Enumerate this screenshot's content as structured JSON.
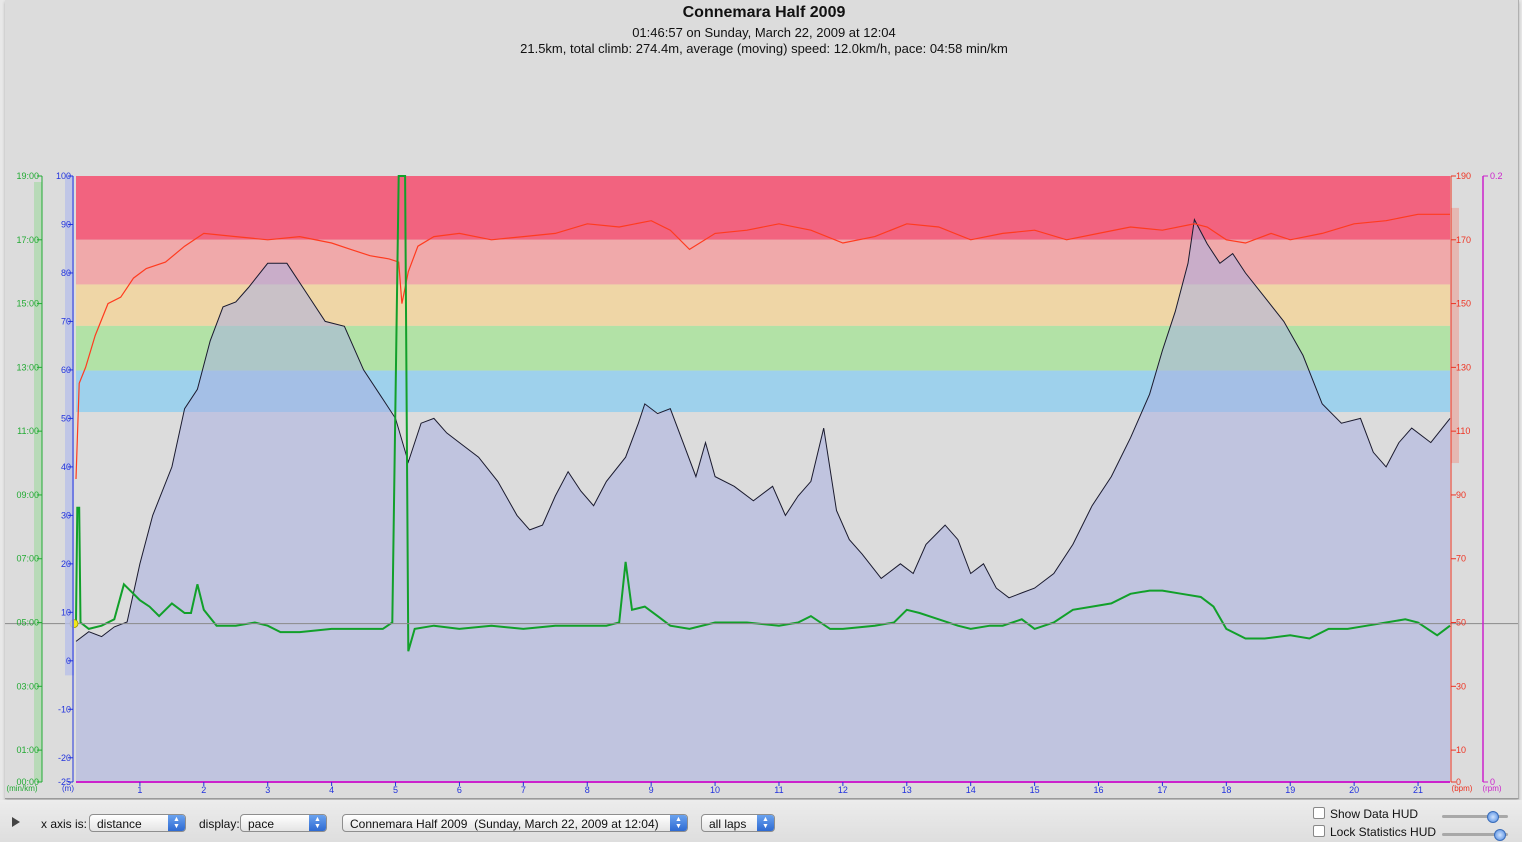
{
  "chart_data": {
    "type": "line",
    "title": "Connemara Half 2009",
    "subtitle": "01:46:57 on Sunday, March 22, 2009 at 12:04",
    "summary": "21.5km, total climb: 274.4m, average (moving) speed: 12.0km/h, pace: 04:58 min/km",
    "xlim": [
      0,
      21.5
    ],
    "x_ticks": [
      1,
      2,
      3,
      4,
      5,
      6,
      7,
      8,
      9,
      10,
      11,
      12,
      13,
      14,
      15,
      16,
      17,
      18,
      19,
      20,
      21
    ],
    "axes": {
      "pace": {
        "unit": "(min/km)",
        "color": "#22aa33",
        "ticks": [
          "19:00",
          "17:00",
          "15:00",
          "13:00",
          "11:00",
          "09:00",
          "07:00",
          "05:00",
          "03:00",
          "01:00",
          "00:00"
        ],
        "range_minutes": [
          0,
          19
        ]
      },
      "altitude": {
        "unit": "(m)",
        "color": "#2233dd",
        "ticks": [
          100,
          90,
          80,
          70,
          60,
          50,
          40,
          30,
          20,
          10,
          0,
          -10,
          -20,
          -25
        ],
        "range": [
          -25,
          100
        ]
      },
      "heart_rate": {
        "unit": "(bpm)",
        "color": "#ee3322",
        "ticks": [
          190,
          170,
          150,
          130,
          110,
          90,
          70,
          50,
          30,
          10,
          0
        ],
        "range": [
          0,
          190
        ]
      },
      "cadence": {
        "unit": "(rpm)",
        "color": "#cc22cc",
        "ticks": [
          "0.2",
          "0"
        ],
        "range": [
          0,
          0.2
        ]
      }
    },
    "hr_zones": [
      {
        "from": 170,
        "to": 190,
        "color": "#f2637f"
      },
      {
        "from": 156,
        "to": 170,
        "color": "#f0a9aa"
      },
      {
        "from": 143,
        "to": 156,
        "color": "#efd6a6"
      },
      {
        "from": 129,
        "to": 143,
        "color": "#b2e2a6"
      },
      {
        "from": 116,
        "to": 129,
        "color": "#9ed1ec"
      }
    ],
    "reference_pace": "04:58",
    "series": [
      {
        "key": "altitude",
        "axis": "altitude",
        "color": "#1a1a2e",
        "fill": "#aab0e2",
        "points": [
          [
            0,
            4
          ],
          [
            0.2,
            6
          ],
          [
            0.4,
            5
          ],
          [
            0.6,
            7
          ],
          [
            0.8,
            8
          ],
          [
            1.0,
            20
          ],
          [
            1.2,
            30
          ],
          [
            1.5,
            40
          ],
          [
            1.7,
            52
          ],
          [
            1.9,
            56
          ],
          [
            2.1,
            66
          ],
          [
            2.3,
            73
          ],
          [
            2.5,
            74
          ],
          [
            2.7,
            77
          ],
          [
            3.0,
            82
          ],
          [
            3.3,
            82
          ],
          [
            3.6,
            76
          ],
          [
            3.9,
            70
          ],
          [
            4.2,
            69
          ],
          [
            4.5,
            60
          ],
          [
            4.8,
            54
          ],
          [
            5.0,
            50
          ],
          [
            5.2,
            41
          ],
          [
            5.4,
            49
          ],
          [
            5.6,
            50
          ],
          [
            5.8,
            47
          ],
          [
            6.0,
            45
          ],
          [
            6.3,
            42
          ],
          [
            6.6,
            37
          ],
          [
            6.9,
            30
          ],
          [
            7.1,
            27
          ],
          [
            7.3,
            28
          ],
          [
            7.5,
            34
          ],
          [
            7.7,
            39
          ],
          [
            7.9,
            35
          ],
          [
            8.1,
            32
          ],
          [
            8.3,
            37
          ],
          [
            8.6,
            42
          ],
          [
            8.8,
            49
          ],
          [
            8.9,
            53
          ],
          [
            9.1,
            51
          ],
          [
            9.3,
            52
          ],
          [
            9.5,
            45
          ],
          [
            9.7,
            38
          ],
          [
            9.85,
            45
          ],
          [
            10.0,
            38
          ],
          [
            10.3,
            36
          ],
          [
            10.6,
            33
          ],
          [
            10.9,
            36
          ],
          [
            11.1,
            30
          ],
          [
            11.3,
            34
          ],
          [
            11.5,
            37
          ],
          [
            11.7,
            48
          ],
          [
            11.9,
            31
          ],
          [
            12.1,
            25
          ],
          [
            12.3,
            22
          ],
          [
            12.6,
            17
          ],
          [
            12.9,
            20
          ],
          [
            13.1,
            18
          ],
          [
            13.3,
            24
          ],
          [
            13.6,
            28
          ],
          [
            13.8,
            25
          ],
          [
            14.0,
            18
          ],
          [
            14.2,
            20
          ],
          [
            14.4,
            15
          ],
          [
            14.6,
            13
          ],
          [
            14.8,
            14
          ],
          [
            15.0,
            15
          ],
          [
            15.3,
            18
          ],
          [
            15.6,
            24
          ],
          [
            15.9,
            32
          ],
          [
            16.2,
            38
          ],
          [
            16.5,
            46
          ],
          [
            16.8,
            55
          ],
          [
            17.0,
            64
          ],
          [
            17.2,
            72
          ],
          [
            17.4,
            82
          ],
          [
            17.5,
            91
          ],
          [
            17.7,
            86
          ],
          [
            17.9,
            82
          ],
          [
            18.1,
            84
          ],
          [
            18.3,
            80
          ],
          [
            18.6,
            75
          ],
          [
            18.9,
            70
          ],
          [
            19.2,
            63
          ],
          [
            19.5,
            53
          ],
          [
            19.8,
            49
          ],
          [
            20.1,
            50
          ],
          [
            20.3,
            43
          ],
          [
            20.5,
            40
          ],
          [
            20.7,
            45
          ],
          [
            20.9,
            48
          ],
          [
            21.2,
            45
          ],
          [
            21.5,
            50
          ]
        ]
      },
      {
        "key": "heart_rate",
        "axis": "heart_rate",
        "color": "#ff3b1f",
        "points": [
          [
            0,
            95
          ],
          [
            0.05,
            125
          ],
          [
            0.15,
            130
          ],
          [
            0.3,
            140
          ],
          [
            0.5,
            150
          ],
          [
            0.7,
            152
          ],
          [
            0.9,
            158
          ],
          [
            1.1,
            161
          ],
          [
            1.4,
            163
          ],
          [
            1.7,
            168
          ],
          [
            2.0,
            172
          ],
          [
            2.5,
            171
          ],
          [
            3.0,
            170
          ],
          [
            3.5,
            171
          ],
          [
            4.0,
            169
          ],
          [
            4.3,
            167
          ],
          [
            4.6,
            165
          ],
          [
            4.9,
            164
          ],
          [
            5.05,
            163
          ],
          [
            5.1,
            150
          ],
          [
            5.2,
            160
          ],
          [
            5.35,
            168
          ],
          [
            5.6,
            171
          ],
          [
            6.0,
            172
          ],
          [
            6.5,
            170
          ],
          [
            7.0,
            171
          ],
          [
            7.5,
            172
          ],
          [
            8.0,
            175
          ],
          [
            8.5,
            174
          ],
          [
            9.0,
            176
          ],
          [
            9.3,
            173
          ],
          [
            9.6,
            167
          ],
          [
            10.0,
            172
          ],
          [
            10.5,
            173
          ],
          [
            11.0,
            175
          ],
          [
            11.5,
            173
          ],
          [
            12.0,
            169
          ],
          [
            12.5,
            171
          ],
          [
            13.0,
            175
          ],
          [
            13.5,
            174
          ],
          [
            14.0,
            170
          ],
          [
            14.5,
            172
          ],
          [
            15.0,
            173
          ],
          [
            15.5,
            170
          ],
          [
            16.0,
            172
          ],
          [
            16.5,
            174
          ],
          [
            17.0,
            173
          ],
          [
            17.5,
            175
          ],
          [
            17.7,
            174
          ],
          [
            18.0,
            170
          ],
          [
            18.3,
            169
          ],
          [
            18.7,
            172
          ],
          [
            19.0,
            170
          ],
          [
            19.5,
            172
          ],
          [
            20.0,
            175
          ],
          [
            20.5,
            176
          ],
          [
            21.0,
            178
          ],
          [
            21.5,
            178
          ]
        ]
      },
      {
        "key": "pace",
        "axis": "pace",
        "color": "#11a02a",
        "points": [
          [
            0,
            5.0
          ],
          [
            0.02,
            8.6
          ],
          [
            0.05,
            8.6
          ],
          [
            0.07,
            5.0
          ],
          [
            0.2,
            4.8
          ],
          [
            0.4,
            4.9
          ],
          [
            0.6,
            5.1
          ],
          [
            0.75,
            6.2
          ],
          [
            0.9,
            5.9
          ],
          [
            1.0,
            5.7
          ],
          [
            1.15,
            5.5
          ],
          [
            1.3,
            5.2
          ],
          [
            1.5,
            5.6
          ],
          [
            1.7,
            5.3
          ],
          [
            1.8,
            5.3
          ],
          [
            1.9,
            6.2
          ],
          [
            2.0,
            5.4
          ],
          [
            2.2,
            4.9
          ],
          [
            2.5,
            4.9
          ],
          [
            2.8,
            5.0
          ],
          [
            3.0,
            4.9
          ],
          [
            3.2,
            4.7
          ],
          [
            3.5,
            4.7
          ],
          [
            4.0,
            4.8
          ],
          [
            4.5,
            4.8
          ],
          [
            4.8,
            4.8
          ],
          [
            4.95,
            5.0
          ],
          [
            5.05,
            19.0
          ],
          [
            5.15,
            19.0
          ],
          [
            5.2,
            4.1
          ],
          [
            5.3,
            4.8
          ],
          [
            5.6,
            4.9
          ],
          [
            6.0,
            4.8
          ],
          [
            6.5,
            4.9
          ],
          [
            7.0,
            4.8
          ],
          [
            7.5,
            4.9
          ],
          [
            8.0,
            4.9
          ],
          [
            8.3,
            4.9
          ],
          [
            8.5,
            5.0
          ],
          [
            8.6,
            6.9
          ],
          [
            8.7,
            5.4
          ],
          [
            8.9,
            5.5
          ],
          [
            9.1,
            5.2
          ],
          [
            9.3,
            4.9
          ],
          [
            9.6,
            4.8
          ],
          [
            10.0,
            5.0
          ],
          [
            10.5,
            5.0
          ],
          [
            11.0,
            4.9
          ],
          [
            11.3,
            5.0
          ],
          [
            11.5,
            5.2
          ],
          [
            11.8,
            4.8
          ],
          [
            12.0,
            4.8
          ],
          [
            12.5,
            4.9
          ],
          [
            12.8,
            5.0
          ],
          [
            13.0,
            5.4
          ],
          [
            13.2,
            5.3
          ],
          [
            13.5,
            5.1
          ],
          [
            13.8,
            4.9
          ],
          [
            14.0,
            4.8
          ],
          [
            14.3,
            4.9
          ],
          [
            14.5,
            4.9
          ],
          [
            14.8,
            5.1
          ],
          [
            15.0,
            4.8
          ],
          [
            15.3,
            5.0
          ],
          [
            15.6,
            5.4
          ],
          [
            15.9,
            5.5
          ],
          [
            16.2,
            5.6
          ],
          [
            16.5,
            5.9
          ],
          [
            16.8,
            6.0
          ],
          [
            17.0,
            6.0
          ],
          [
            17.3,
            5.9
          ],
          [
            17.6,
            5.8
          ],
          [
            17.8,
            5.5
          ],
          [
            18.0,
            4.8
          ],
          [
            18.3,
            4.5
          ],
          [
            18.6,
            4.5
          ],
          [
            19.0,
            4.6
          ],
          [
            19.3,
            4.5
          ],
          [
            19.6,
            4.8
          ],
          [
            19.9,
            4.8
          ],
          [
            20.2,
            4.9
          ],
          [
            20.5,
            5.0
          ],
          [
            20.8,
            5.1
          ],
          [
            21.0,
            5.0
          ],
          [
            21.3,
            4.6
          ],
          [
            21.5,
            4.9
          ]
        ]
      }
    ]
  },
  "toolbar": {
    "x_axis_label": "x axis is:",
    "x_axis_value": "distance",
    "display_label": "display:",
    "display_value": "pace",
    "activity_value": "Connemara Half 2009  (Sunday, March 22, 2009 at 12:04)",
    "laps_value": "all laps",
    "show_data_hud": "Show Data HUD",
    "lock_statistics_hud": "Lock Statistics HUD",
    "show_data_hud_slider": 0.8,
    "lock_statistics_hud_slider": 0.93
  }
}
